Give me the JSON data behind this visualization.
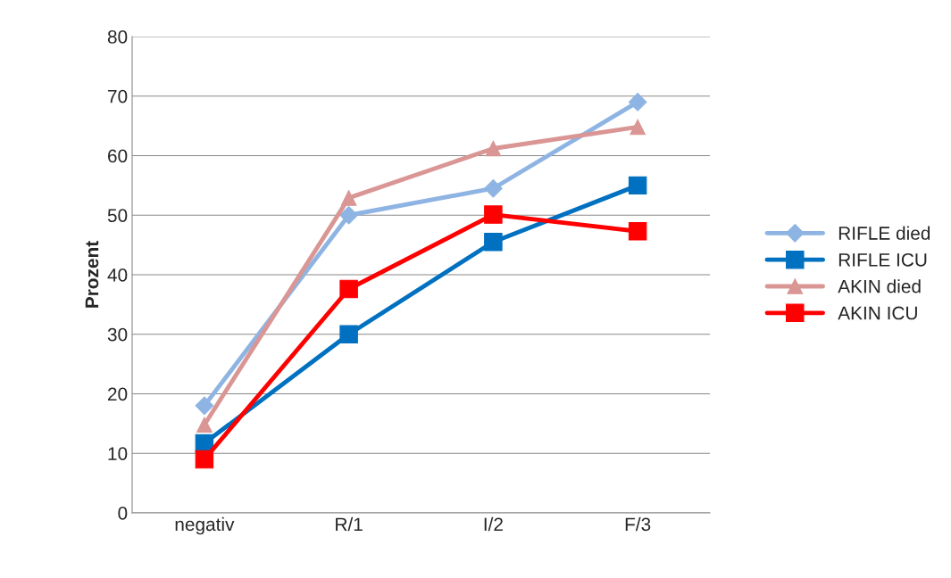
{
  "chart_data": {
    "type": "line",
    "ylabel": "Prozent",
    "categories": [
      "negativ",
      "R/1",
      "I/2",
      "F/3"
    ],
    "ylim": [
      0,
      80
    ],
    "yticks": [
      0,
      10,
      20,
      30,
      40,
      50,
      60,
      70,
      80
    ],
    "grid": "y",
    "legend": "right",
    "series": [
      {
        "name": "RIFLE died",
        "color": "#8eb4e3",
        "marker": "diamond",
        "values": [
          18.0,
          50.0,
          54.5,
          69.0
        ]
      },
      {
        "name": "RIFLE ICU",
        "color": "#0070c0",
        "marker": "square",
        "values": [
          11.7,
          30.0,
          45.5,
          55.0
        ]
      },
      {
        "name": "AKIN died",
        "color": "#d99694",
        "marker": "triangle",
        "values": [
          14.8,
          52.9,
          61.2,
          64.8
        ]
      },
      {
        "name": "AKIN ICU",
        "color": "#ff0000",
        "marker": "square",
        "values": [
          9.0,
          37.6,
          50.1,
          47.3
        ]
      }
    ]
  }
}
